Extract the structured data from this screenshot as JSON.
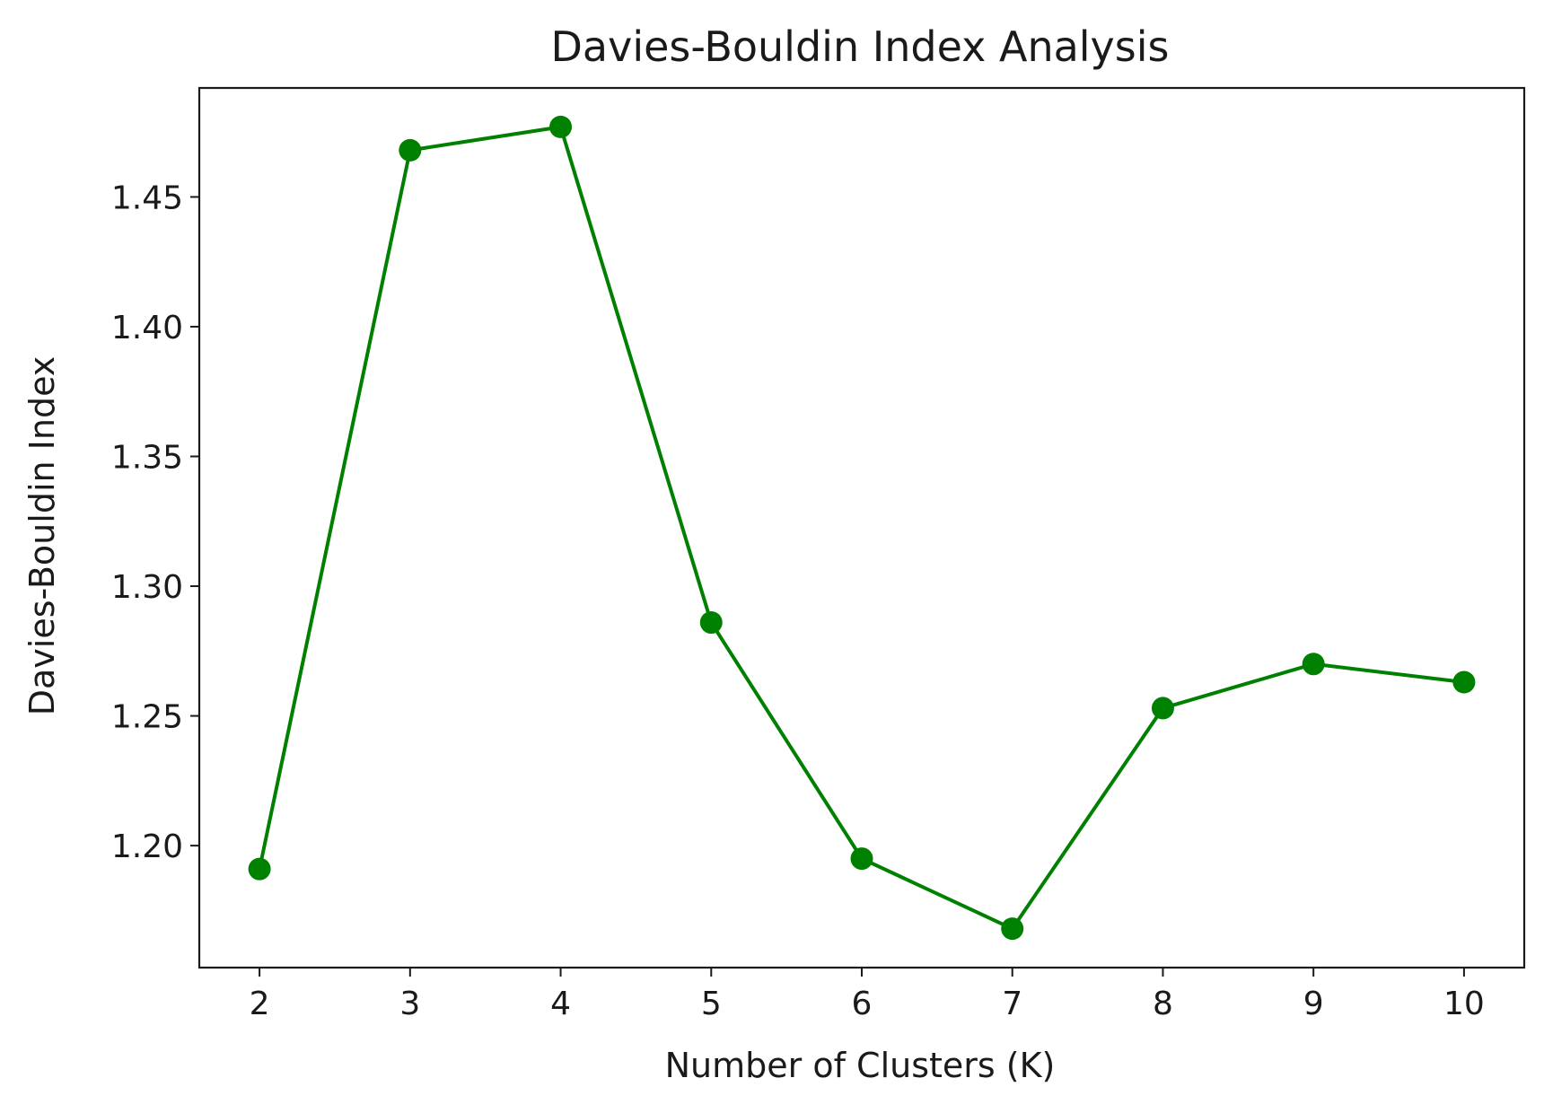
{
  "chart_data": {
    "type": "line",
    "title": "Davies-Bouldin Index Analysis",
    "xlabel": "Number of Clusters (K)",
    "ylabel": "Davies-Bouldin Index",
    "x": [
      2,
      3,
      4,
      5,
      6,
      7,
      8,
      9,
      10
    ],
    "series": [
      {
        "values": [
          1.191,
          1.468,
          1.477,
          1.286,
          1.195,
          1.168,
          1.253,
          1.27,
          1.263
        ],
        "color": "#008000",
        "marker": "circle"
      }
    ],
    "x_ticks": [
      "2",
      "3",
      "4",
      "5",
      "6",
      "7",
      "8",
      "9",
      "10"
    ],
    "y_ticks": [
      "1.20",
      "1.25",
      "1.30",
      "1.35",
      "1.40",
      "1.45"
    ],
    "xlim": [
      1.6,
      10.4
    ],
    "ylim": [
      1.153,
      1.492
    ],
    "grid": false,
    "legend": "none"
  }
}
